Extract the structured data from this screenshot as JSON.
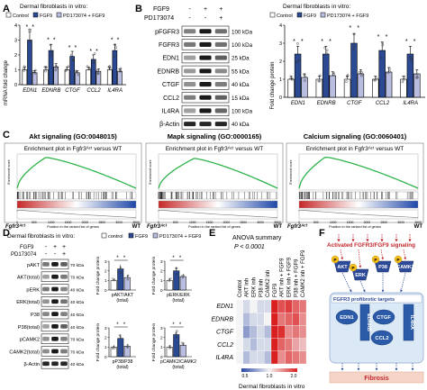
{
  "panels": {
    "A": {
      "letter": "A",
      "title": "Dermal fibroblasts in vitro:",
      "legend": [
        "Control",
        "FGF9",
        "PD173074 + FGF9"
      ],
      "ylabel": "mRNA fold change",
      "stars": [
        [
          "*",
          "*"
        ],
        [
          "*",
          "*"
        ],
        [
          "*",
          "*"
        ],
        [
          "*",
          "*"
        ],
        [
          "*",
          "*"
        ]
      ]
    },
    "B": {
      "letter": "B",
      "fgf9_label": "FGF9",
      "pd_label": "PD173074",
      "fgf9_signs": [
        "-",
        "+",
        "+"
      ],
      "pd_signs": [
        "-",
        "-",
        "+"
      ],
      "blots": [
        {
          "label": "pFGFR3",
          "mw": "100 kDa"
        },
        {
          "label": "FGFR3",
          "mw": "100 kDa"
        },
        {
          "label": "EDN1",
          "mw": "25 kDa"
        },
        {
          "label": "EDNRB",
          "mw": "55 kDa"
        },
        {
          "label": "CTGF",
          "mw": "40 kDa"
        },
        {
          "label": "CCL2",
          "mw": "15 kDa"
        },
        {
          "label": "IL4RA",
          "mw": "100 kDa"
        },
        {
          "label": "β-Actin",
          "mw": "40 kDa"
        }
      ],
      "title": "Dermal fibroblasts in vitro:",
      "legend": [
        "Control",
        "FGF9",
        "PD173074 + FGF9"
      ],
      "ylabel": "Fold change protein",
      "stars": [
        [
          "*",
          "*"
        ],
        [
          "*",
          "*"
        ],
        [
          "*",
          "*"
        ],
        [
          "*",
          "*"
        ],
        [
          "*",
          "*"
        ]
      ]
    },
    "C": {
      "letter": "C",
      "titles": [
        "Akt signaling (GO:0048015)",
        "Mapk signaling (GO:0000165)",
        "Calcium signaling (GO:0060401)"
      ],
      "plot_title": "Enrichment plot in Fgfr3ᴬᶜᵗ versus WT",
      "left_label": "Fgfr3ᴬᶜᵗ",
      "right_label": "WT",
      "xlabel": "Position in the ranked list of genes",
      "ylabel": "Enrichment score"
    },
    "D": {
      "letter": "D",
      "title": "Dermal fibroblasts in vitro:",
      "legend": [
        "control",
        "FGF9",
        "PD173074 + FGF9"
      ],
      "fgf9_label": "FGF9",
      "pd_label": "PD173074",
      "fgf9_signs": [
        "-",
        "+",
        "+"
      ],
      "pd_signs": [
        "-",
        "-",
        "+"
      ],
      "blots": [
        {
          "label": "pAKT",
          "mw": "70 kDa"
        },
        {
          "label": "AKT(total)",
          "mw": "70 kDa"
        },
        {
          "label": "pERK",
          "mw": "40 kDa"
        },
        {
          "label": "ERK(total)",
          "mw": "40 kDa"
        },
        {
          "label": "P38",
          "mw": "40 kDa"
        },
        {
          "label": "P38(total)",
          "mw": "40 kDa"
        },
        {
          "label": "pCAMK2",
          "mw": "70 kDa"
        },
        {
          "label": "CAMK2(total)",
          "mw": "70 kDa"
        },
        {
          "label": "β-Actin",
          "mw": "40 kDa"
        }
      ],
      "ylabel": "Fold change protein",
      "sub_labels": [
        [
          "pAKT/AKT",
          "(total)"
        ],
        [
          "pERK/ERK",
          "(total)"
        ],
        [
          "pP38/P38",
          "(total)"
        ],
        [
          "pCAMK2/CAMK2",
          "(total)"
        ]
      ]
    },
    "E": {
      "letter": "E",
      "anova_title": "ANOVA summary",
      "p_value": "P < 0.0001",
      "columns": [
        "Control",
        "AKT inh",
        "ERK inh",
        "P38 inh",
        "CAMK2 inh",
        "FGF9",
        "AKT inh + FGF9",
        "ERK inh + FGF9",
        "P38 inh + FGF9",
        "CAMK2 inh + FGF9"
      ],
      "rows": [
        "EDN1",
        "EDNRB",
        "CTGF",
        "CCL2",
        "IL4RA"
      ],
      "colorbar_ticks": [
        "0.5",
        "1.0",
        "2.0"
      ],
      "footer": "Dermal fibroblasts in vitro"
    },
    "F": {
      "letter": "F",
      "top_label": "Activated FGFR3/FGF9 signaling",
      "kinases": [
        "AKT",
        "ERK",
        "P38",
        "CAMK2"
      ],
      "phospho": "P",
      "targets_title": "FGFR3 profibrotic targets",
      "targets": [
        "EDN1",
        "EDNRB",
        "CTGF",
        "CCL2",
        "IL4RA"
      ],
      "bottom": "Fibrosis"
    }
  },
  "chart_data": [
    {
      "panel": "A",
      "type": "bar",
      "categories": [
        "EDN1",
        "EDNRB",
        "CTGF",
        "CCL2",
        "IL4RA"
      ],
      "ylabel": "mRNA fold change",
      "ylim": [
        0,
        4
      ],
      "yticks": [
        0,
        1,
        2,
        3,
        4
      ],
      "series": [
        {
          "name": "Control",
          "values": [
            1.0,
            1.0,
            1.0,
            1.0,
            1.0
          ]
        },
        {
          "name": "FGF9",
          "values": [
            3.0,
            2.3,
            1.9,
            1.7,
            2.3
          ]
        },
        {
          "name": "PD173074 + FGF9",
          "values": [
            0.8,
            1.2,
            0.8,
            0.9,
            0.9
          ]
        }
      ]
    },
    {
      "panel": "B",
      "type": "bar",
      "categories": [
        "EDN1",
        "EDNRB",
        "CTGF",
        "CCL2",
        "IL4RA"
      ],
      "ylabel": "Fold change protein",
      "ylim": [
        0,
        4
      ],
      "yticks": [
        0,
        1,
        2,
        3,
        4
      ],
      "series": [
        {
          "name": "Control",
          "values": [
            1.0,
            1.0,
            1.0,
            1.0,
            1.0
          ]
        },
        {
          "name": "FGF9",
          "values": [
            2.4,
            2.4,
            3.0,
            2.6,
            2.4
          ]
        },
        {
          "name": "PD173074 + FGF9",
          "values": [
            1.1,
            1.2,
            1.3,
            1.4,
            1.3
          ]
        }
      ]
    },
    {
      "panel": "D",
      "type": "bar",
      "categories": [
        "pAKT/AKT(total)",
        "pERK/ERK(total)",
        "pP38/P38(total)",
        "pCAMK2/CAMK2(total)"
      ],
      "ylabel": "Fold change protein",
      "ylim": [
        0,
        3
      ],
      "yticks": [
        0,
        1,
        2,
        3
      ],
      "series": [
        {
          "name": "control",
          "values": [
            1.0,
            1.0,
            1.0,
            1.0
          ]
        },
        {
          "name": "FGF9",
          "values": [
            2.2,
            2.0,
            1.9,
            2.3
          ]
        },
        {
          "name": "PD173074 + FGF9",
          "values": [
            1.3,
            1.4,
            1.1,
            1.2
          ]
        }
      ]
    },
    {
      "panel": "C",
      "type": "line",
      "curves": [
        {
          "peak_x": 0.24,
          "peak_y": 0.95
        },
        {
          "peak_x": 0.3,
          "peak_y": 0.92
        },
        {
          "peak_x": 0.22,
          "peak_y": 0.96
        }
      ],
      "xticks": [
        0,
        500,
        1000,
        1500,
        2000,
        2500,
        3000,
        3500
      ]
    },
    {
      "panel": "E",
      "type": "heatmap",
      "values": [
        [
          1.0,
          0.9,
          1.0,
          0.9,
          0.9,
          2.6,
          1.7,
          1.8,
          1.6,
          1.5
        ],
        [
          1.0,
          0.8,
          0.9,
          0.9,
          1.0,
          2.4,
          1.5,
          1.6,
          1.7,
          1.4
        ],
        [
          1.0,
          0.7,
          0.8,
          0.9,
          0.8,
          2.2,
          1.9,
          1.4,
          1.5,
          1.4
        ],
        [
          1.0,
          0.9,
          0.8,
          0.9,
          0.9,
          2.0,
          1.6,
          1.5,
          1.3,
          1.2
        ],
        [
          1.0,
          0.8,
          0.9,
          0.9,
          0.8,
          2.3,
          1.4,
          1.6,
          1.5,
          1.4
        ]
      ],
      "scale": [
        0.5,
        2.0
      ]
    }
  ],
  "colors": {
    "control": "#ffffff",
    "fgf9": "#2b4a93",
    "pd": "#b9bde0",
    "heat_low": "#2947a4",
    "heat_mid": "#f4f4f4",
    "heat_high": "#d91f20",
    "red": "#c0272d",
    "pathway_blue": "#2c4a98",
    "gold": "#f6bf1e"
  }
}
